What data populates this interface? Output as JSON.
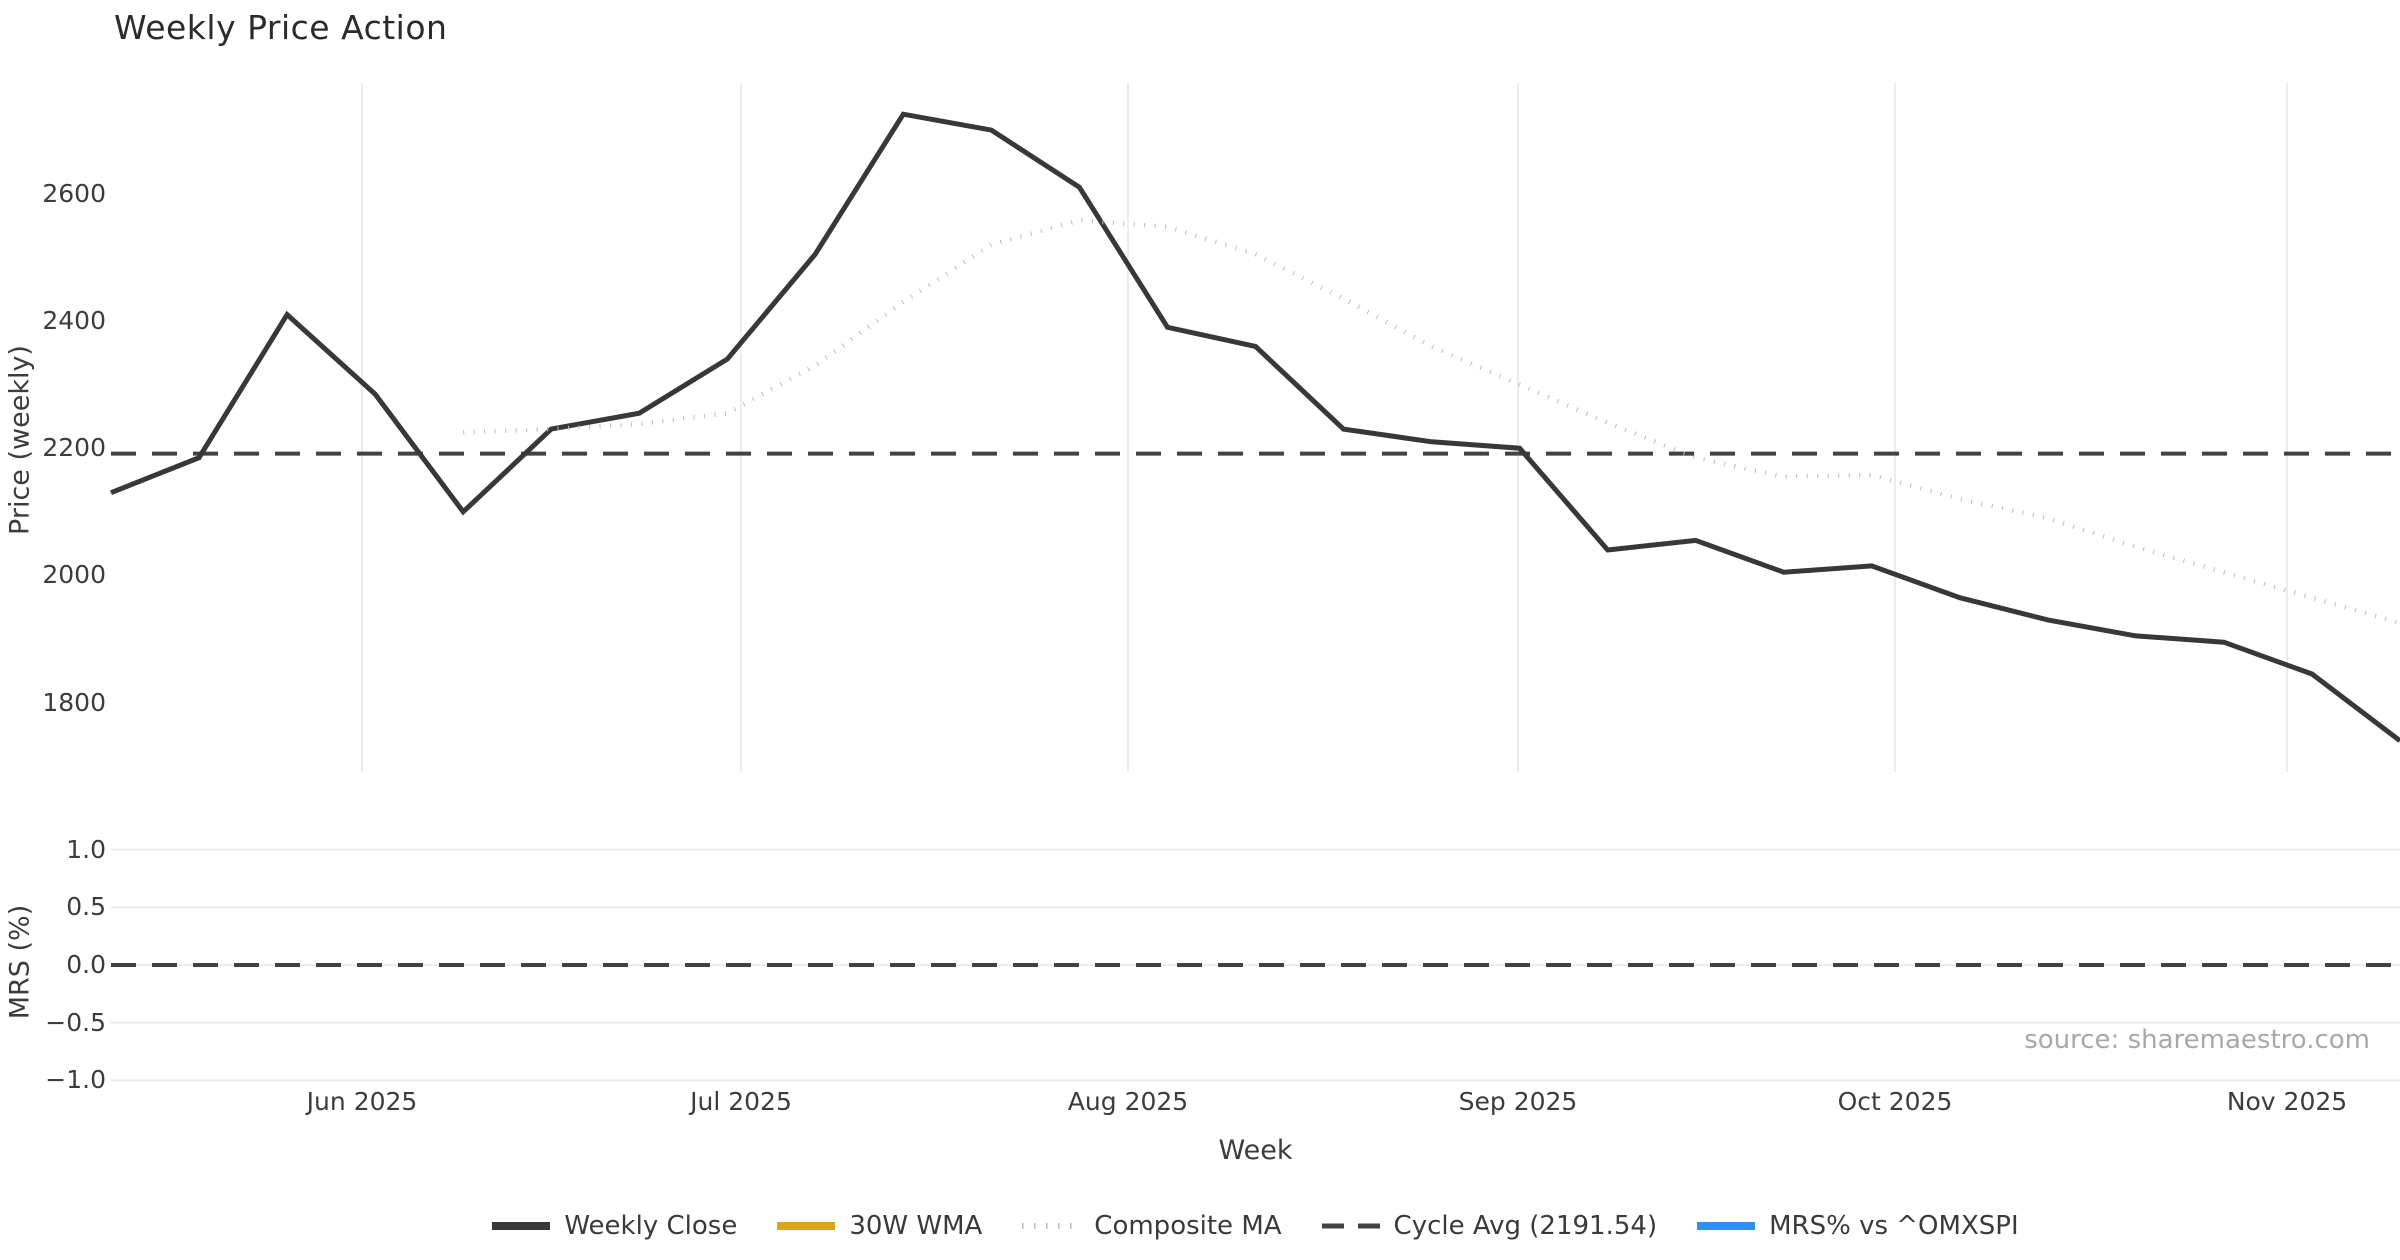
{
  "title": "Weekly Price Action",
  "source_note": "source: sharemaestro.com",
  "axes_text": {
    "xlabel": "Week",
    "price_ylabel": "Price (weekly)",
    "mrs_ylabel": "MRS (%)"
  },
  "chart_data": [
    {
      "type": "line",
      "panel": "price",
      "title": "Weekly Price Action",
      "xlabel": "Week",
      "ylabel": "Price (weekly)",
      "x_unit": "weekly observations, week index 0-26 (mid-May 2025 through mid-Nov 2025)",
      "xlim_weeks": [
        0,
        26
      ],
      "ylim": [
        1691,
        2774
      ],
      "grid": "vertical month gridlines only",
      "yticks": [
        {
          "label": "2600",
          "value": 2600
        },
        {
          "label": "2400",
          "value": 2400
        },
        {
          "label": "2200",
          "value": 2200
        },
        {
          "label": "2000",
          "value": 2000
        },
        {
          "label": "1800",
          "value": 1800
        }
      ],
      "xticks": [
        {
          "label": "Jun 2025",
          "x_week": 2.851
        },
        {
          "label": "Jul 2025",
          "x_week": 7.156
        },
        {
          "label": "Aug 2025",
          "x_week": 11.552
        },
        {
          "label": "Sep 2025",
          "x_week": 15.982
        },
        {
          "label": "Oct 2025",
          "x_week": 20.264
        },
        {
          "label": "Nov 2025",
          "x_week": 24.717
        }
      ],
      "series": [
        {
          "name": "Weekly Close",
          "style": "solid",
          "color": "#383838",
          "width": 5,
          "start_week": 0,
          "values": [
            2130,
            2185,
            2410,
            2285,
            2100,
            2230,
            2255,
            2340,
            2505,
            2725,
            2700,
            2610,
            2390,
            2360,
            2230,
            2210,
            2200,
            2040,
            2055,
            2005,
            2015,
            1965,
            1930,
            1905,
            1895,
            1845,
            1740
          ]
        },
        {
          "name": "Composite MA",
          "style": "dotted",
          "color": "#bcbcbc",
          "width": 4.5,
          "start_week": 4,
          "values": [
            2225,
            2230,
            2238,
            2255,
            2330,
            2430,
            2520,
            2558,
            2548,
            2505,
            2435,
            2360,
            2300,
            2240,
            2185,
            2155,
            2158,
            2120,
            2090,
            2045,
            2005,
            1965,
            1925
          ]
        },
        {
          "name": "Cycle Avg",
          "style": "dashed",
          "color": "#424242",
          "width": 4,
          "hline": 2191.54
        }
      ]
    },
    {
      "type": "line",
      "panel": "mrs",
      "ylabel": "MRS (%)",
      "xlim_weeks": [
        0,
        26
      ],
      "ylim": [
        -1.07,
        1.07
      ],
      "grid": "horizontal gridlines at each tick",
      "yticks": [
        {
          "label": "1.0",
          "value": 1.0
        },
        {
          "label": "0.5",
          "value": 0.5
        },
        {
          "label": "0.0",
          "value": 0.0
        },
        {
          "label": "−0.5",
          "value": -0.5
        },
        {
          "label": "−1.0",
          "value": -1.0
        }
      ],
      "series": [
        {
          "name": "Zero line",
          "style": "dashed",
          "color": "#424242",
          "width": 4,
          "hline": 0.0
        }
      ]
    }
  ],
  "legend": {
    "position": "bottom center",
    "items": [
      {
        "label": "Weekly Close",
        "color": "#383838",
        "style": "solid"
      },
      {
        "label": "30W WMA",
        "color": "#d9a521",
        "style": "solid"
      },
      {
        "label": "Composite MA",
        "color": "#bcbcbc",
        "style": "dotted"
      },
      {
        "label": "Cycle Avg (2191.54)",
        "color": "#424242",
        "style": "dashed"
      },
      {
        "label": "MRS% vs ^OMXSPI",
        "color": "#2b90f0",
        "style": "solid"
      }
    ]
  }
}
